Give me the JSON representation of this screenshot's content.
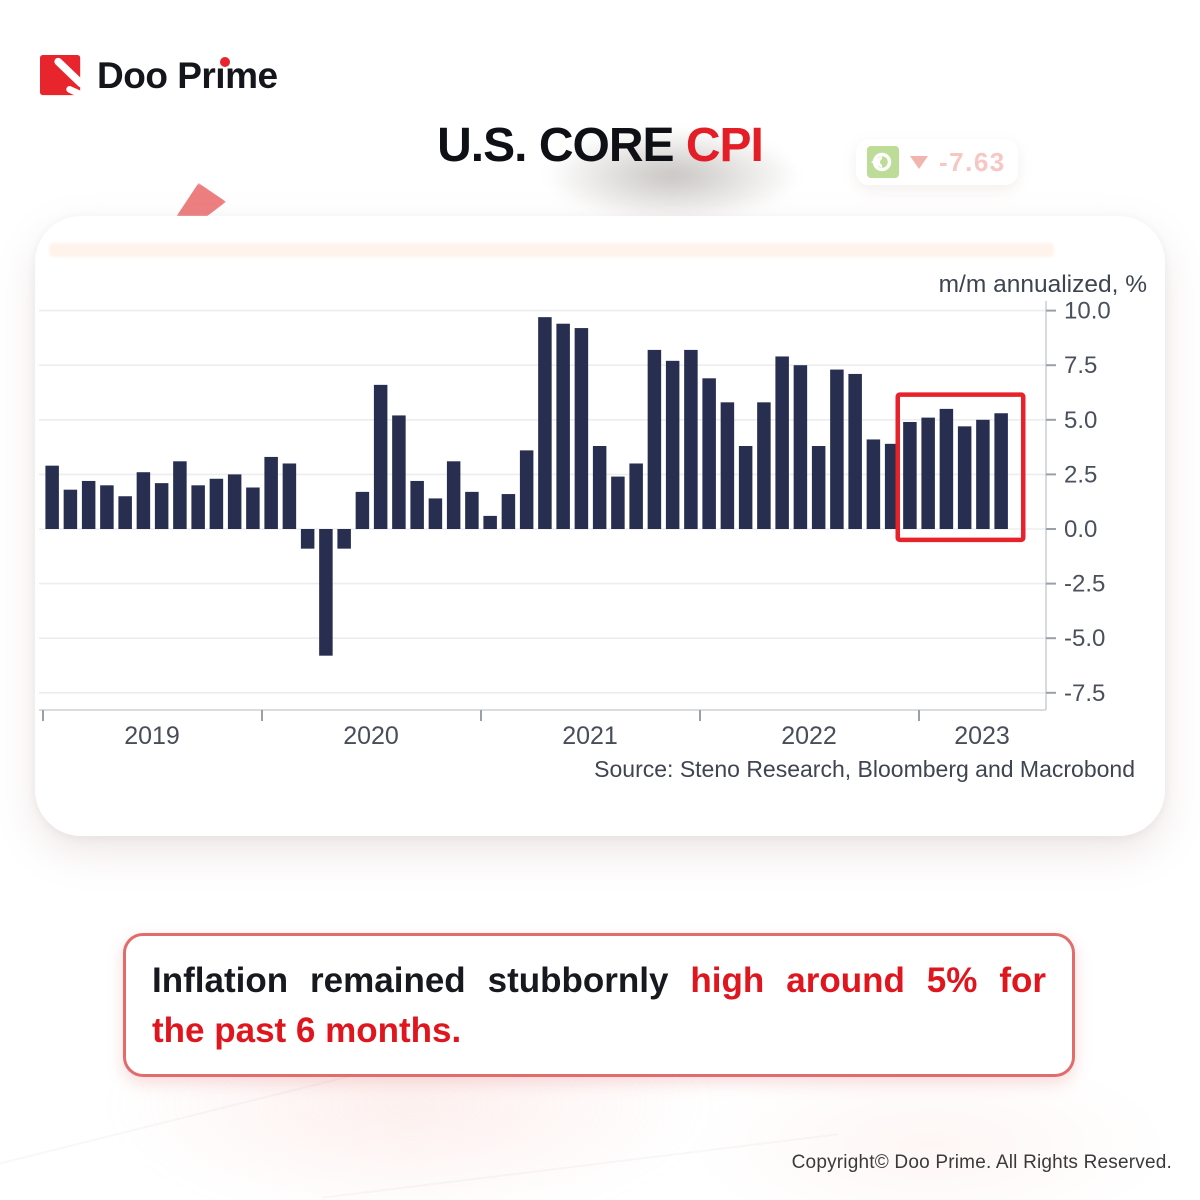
{
  "brand": {
    "name": "Doo Prime",
    "logo_text_parts": {
      "before_i": "Doo Pr",
      "dotless_i": "ı",
      "after_i": "me"
    }
  },
  "header": {
    "title_black": "U.S. CORE",
    "title_red": "CPI"
  },
  "ticker": {
    "icon": "nvidia-logo",
    "direction_icon": "down-triangle",
    "value": "-7.63"
  },
  "chart_data": {
    "type": "bar",
    "unit_label": "m/m annualized, %",
    "source": "Source: Steno Research, Bloomberg and Macrobond",
    "frequency": "monthly",
    "start_month": "2019-01",
    "end_month": "2023-05",
    "x_tick_years": [
      "2019",
      "2020",
      "2021",
      "2022",
      "2023"
    ],
    "y_ticks": [
      10.0,
      7.5,
      5.0,
      2.5,
      0.0,
      -2.5,
      -5.0,
      -7.5
    ],
    "ylim": [
      -8.3,
      10.5
    ],
    "grid": "horizontal",
    "bar_color": "#272e50",
    "values": [
      2.9,
      1.8,
      2.2,
      2.0,
      1.5,
      2.6,
      2.1,
      3.1,
      2.0,
      2.3,
      2.5,
      1.9,
      3.3,
      3.0,
      -0.9,
      -5.8,
      -0.9,
      1.7,
      6.6,
      5.2,
      2.2,
      1.4,
      3.1,
      1.7,
      0.6,
      1.6,
      3.6,
      9.7,
      9.4,
      9.2,
      3.8,
      2.4,
      3.0,
      8.2,
      7.7,
      8.2,
      6.9,
      5.8,
      3.8,
      5.8,
      7.9,
      7.5,
      3.8,
      7.3,
      7.1,
      4.1,
      3.9,
      4.9,
      5.1,
      5.5,
      4.7,
      5.0,
      5.3
    ],
    "highlight": {
      "last_n_bars": 6,
      "box_color": "#e8222a"
    }
  },
  "callout": {
    "line1_black": "Inflation remained stubbornly",
    "line1_red": "high around 5% for",
    "line2_red": "the past 6 months."
  },
  "footer": {
    "copyright": "Copyright© Doo Prime. All Rights Reserved."
  }
}
